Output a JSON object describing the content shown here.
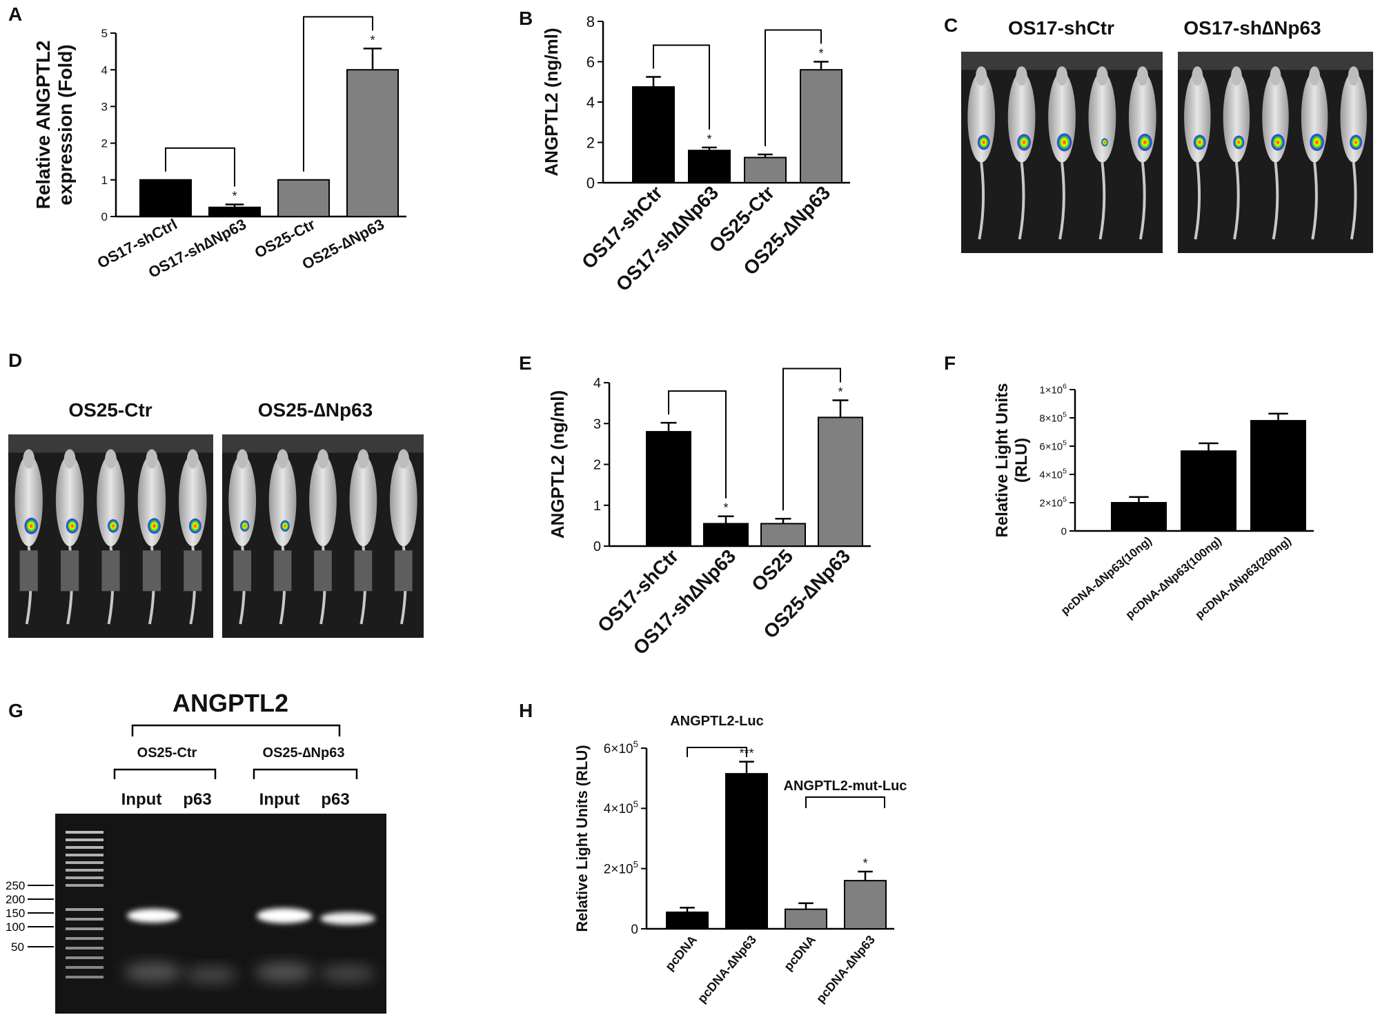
{
  "panel_letters": [
    "A",
    "B",
    "C",
    "D",
    "E",
    "F",
    "G",
    "H"
  ],
  "chart_data": [
    {
      "panel": "A",
      "type": "bar",
      "categories": [
        "OS17-shCtrl",
        "OS17-sh∆Np63",
        "OS25-Ctr",
        "OS25-∆Np63"
      ],
      "values": [
        1.0,
        0.25,
        1.0,
        4.0
      ],
      "errors": [
        0,
        0.08,
        0,
        0.58
      ],
      "colors": [
        "#000000",
        "#000000",
        "#808080",
        "#808080"
      ],
      "ylabel_lines": [
        "Relative ANGPTL2",
        "expression (Fold)"
      ],
      "ylim": [
        0,
        5
      ],
      "yticks": [
        "0",
        "1",
        "2",
        "3",
        "4",
        "5"
      ],
      "significance": [
        "",
        "*",
        "",
        "*"
      ],
      "brackets": [
        [
          0,
          1
        ],
        [
          2,
          3
        ]
      ]
    },
    {
      "panel": "B",
      "type": "bar",
      "categories": [
        "OS17-shCtr",
        "OS17-sh∆Np63",
        "OS25-Ctr",
        "OS25-∆Np63"
      ],
      "values": [
        4.75,
        1.6,
        1.25,
        5.6
      ],
      "errors": [
        0.5,
        0.15,
        0.15,
        0.4
      ],
      "colors": [
        "#000000",
        "#000000",
        "#808080",
        "#808080"
      ],
      "ylabel": "ANGPTL2 (ng/ml)",
      "ylim": [
        0,
        8
      ],
      "yticks": [
        "0",
        "2",
        "4",
        "6",
        "8"
      ],
      "significance": [
        "",
        "*",
        "",
        "*"
      ],
      "brackets": [
        [
          0,
          1
        ],
        [
          2,
          3
        ]
      ]
    },
    {
      "panel": "E",
      "type": "bar",
      "categories": [
        "OS17-shCtr",
        "OS17-sh∆Np63",
        "OS25",
        "OS25-∆Np63"
      ],
      "values": [
        2.8,
        0.55,
        0.55,
        3.15
      ],
      "errors": [
        0.22,
        0.18,
        0.12,
        0.42
      ],
      "colors": [
        "#000000",
        "#000000",
        "#808080",
        "#808080"
      ],
      "ylabel": "ANGPTL2 (ng/ml)",
      "ylim": [
        0,
        4
      ],
      "yticks": [
        "0",
        "1",
        "2",
        "3",
        "4"
      ],
      "significance": [
        "",
        "*",
        "",
        "*"
      ],
      "brackets": [
        [
          0,
          1
        ],
        [
          2,
          3
        ]
      ]
    },
    {
      "panel": "F",
      "type": "bar",
      "categories": [
        "pcDNA-∆Np63(10ng)",
        "pcDNA-∆Np63(100ng)",
        "pcDNA-∆Np63(200ng)"
      ],
      "values": [
        200000,
        565000,
        780000
      ],
      "errors": [
        40000,
        55000,
        50000
      ],
      "colors": [
        "#000000",
        "#000000",
        "#000000"
      ],
      "ylabel_lines": [
        "Relative Light Units",
        "(RLU)"
      ],
      "ylim": [
        0,
        1000000
      ],
      "ytick_mantissas": [
        "0",
        "2×10",
        "4×10",
        "6×10",
        "8×10",
        "1×10"
      ],
      "ytick_exponents": [
        "",
        "5",
        "5",
        "5",
        "5",
        "6"
      ]
    },
    {
      "panel": "H",
      "type": "bar",
      "categories": [
        "pcDNA",
        "pcDNA-∆Np63",
        "pcDNA",
        "pcDNA-∆Np63"
      ],
      "values": [
        55000,
        515000,
        65000,
        160000
      ],
      "errors": [
        15000,
        40000,
        20000,
        30000
      ],
      "colors": [
        "#000000",
        "#000000",
        "#808080",
        "#808080"
      ],
      "ylabel": "Relative Light Units (RLU)",
      "ylim": [
        0,
        600000
      ],
      "ytick_mantissas": [
        "0",
        "2×10",
        "4×10",
        "6×10"
      ],
      "ytick_exponents": [
        "",
        "5",
        "5",
        "5"
      ],
      "significance": [
        "",
        "***",
        "",
        "*"
      ],
      "group_labels": [
        "ANGPTL2-Luc",
        "ANGPTL2-mut-Luc"
      ]
    }
  ],
  "panel_c": {
    "labels": [
      "OS17-shCtr",
      "OS17-sh∆Np63"
    ]
  },
  "panel_d": {
    "labels": [
      "OS25-Ctr",
      "OS25-∆Np63"
    ]
  },
  "panel_g": {
    "title": "ANGPTL2",
    "groups": [
      "OS25-Ctr",
      "OS25-∆Np63"
    ],
    "lanes": [
      "Input",
      "p63",
      "Input",
      "p63"
    ],
    "markers": [
      "250",
      "200",
      "150",
      "100",
      "50"
    ]
  }
}
